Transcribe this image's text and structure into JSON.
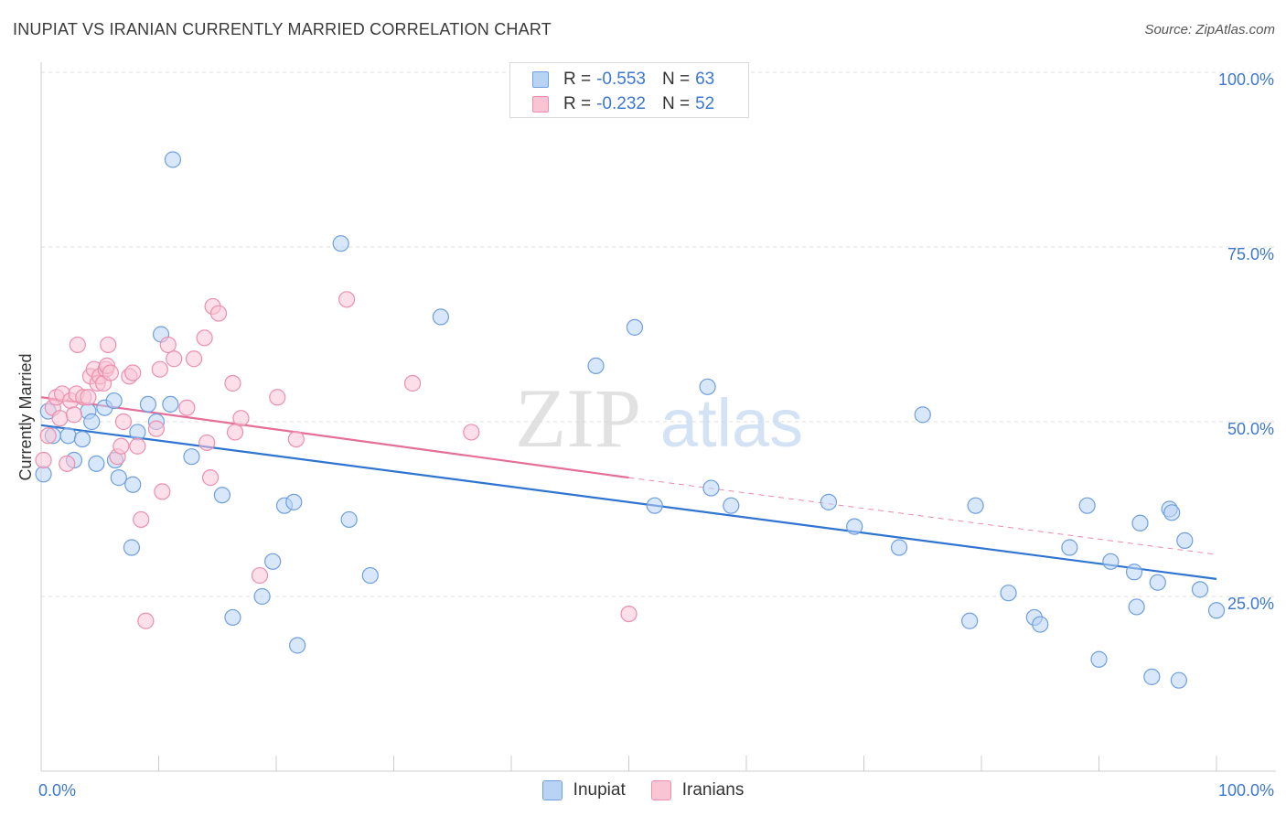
{
  "title": "INUPIAT VS IRANIAN CURRENTLY MARRIED CORRELATION CHART",
  "source": "Source: ZipAtlas.com",
  "watermark": {
    "zip": "ZIP",
    "atlas": "atlas"
  },
  "legend_top": [
    {
      "r_label": "R =",
      "r_value": "-0.553",
      "n_label": "N =",
      "n_value": "63"
    },
    {
      "r_label": "R =",
      "r_value": "-0.232",
      "n_label": "N =",
      "n_value": "52"
    }
  ],
  "legend_bottom": [
    "Inupiat",
    "Iranians"
  ],
  "colors": {
    "blue_fill": "#b9d3f5",
    "blue_stroke": "#6e9fe0",
    "blue_line": "#2f74d0",
    "pink_fill": "#f9c5d5",
    "pink_stroke": "#ec8fae",
    "pink_line": "#e46f98",
    "axis_text": "#3d78d0",
    "grid": "#dddddd"
  },
  "chart_data": {
    "type": "scatter",
    "title": "INUPIAT VS IRANIAN CURRENTLY MARRIED CORRELATION CHART",
    "xlabel": "",
    "ylabel": "Currently Married",
    "xlim": [
      0,
      100
    ],
    "ylim": [
      0,
      100
    ],
    "x_tick_labels": [
      "0.0%",
      "100.0%"
    ],
    "y_tick_labels": [
      "100.0%",
      "75.0%",
      "50.0%",
      "25.0%"
    ],
    "y_ticks": [
      100,
      75,
      50,
      25
    ],
    "series": [
      {
        "name": "Inupiat",
        "color": "#6e9fe0",
        "trend": {
          "x0": 0,
          "y0": 49.5,
          "x1": 100,
          "y1": 27.5
        },
        "points": [
          [
            0.2,
            42.5
          ],
          [
            0.6,
            51.5
          ],
          [
            1.0,
            48.0
          ],
          [
            2.3,
            48.0
          ],
          [
            3.5,
            47.5
          ],
          [
            2.8,
            44.5
          ],
          [
            4.0,
            51.5
          ],
          [
            4.3,
            50.0
          ],
          [
            4.7,
            44.0
          ],
          [
            5.4,
            52.0
          ],
          [
            6.2,
            53.0
          ],
          [
            6.3,
            44.5
          ],
          [
            6.6,
            42.0
          ],
          [
            7.7,
            32.0
          ],
          [
            7.8,
            41.0
          ],
          [
            8.2,
            48.5
          ],
          [
            9.1,
            52.5
          ],
          [
            9.8,
            50.0
          ],
          [
            10.2,
            62.5
          ],
          [
            11.0,
            52.5
          ],
          [
            11.2,
            87.5
          ],
          [
            12.8,
            45.0
          ],
          [
            15.4,
            39.5
          ],
          [
            16.3,
            22.0
          ],
          [
            18.8,
            25.0
          ],
          [
            19.7,
            30.0
          ],
          [
            20.7,
            38.0
          ],
          [
            21.5,
            38.5
          ],
          [
            21.8,
            18.0
          ],
          [
            25.5,
            75.5
          ],
          [
            26.2,
            36.0
          ],
          [
            28.0,
            28.0
          ],
          [
            34.0,
            65.0
          ],
          [
            47.2,
            58.0
          ],
          [
            50.5,
            63.5
          ],
          [
            52.2,
            38.0
          ],
          [
            56.7,
            55.0
          ],
          [
            57.0,
            40.5
          ],
          [
            58.7,
            38.0
          ],
          [
            67.0,
            38.5
          ],
          [
            69.2,
            35.0
          ],
          [
            73.0,
            32.0
          ],
          [
            75.0,
            51.0
          ],
          [
            79.0,
            21.5
          ],
          [
            79.5,
            38.0
          ],
          [
            82.3,
            25.5
          ],
          [
            84.5,
            22.0
          ],
          [
            85.0,
            21.0
          ],
          [
            87.5,
            32.0
          ],
          [
            89.0,
            38.0
          ],
          [
            90.0,
            16.0
          ],
          [
            91.0,
            30.0
          ],
          [
            93.0,
            28.5
          ],
          [
            93.2,
            23.5
          ],
          [
            93.5,
            35.5
          ],
          [
            94.5,
            13.5
          ],
          [
            95.0,
            27.0
          ],
          [
            96.0,
            37.5
          ],
          [
            96.2,
            37.0
          ],
          [
            96.8,
            13.0
          ],
          [
            97.3,
            33.0
          ],
          [
            98.6,
            26.0
          ],
          [
            100.0,
            23.0
          ]
        ]
      },
      {
        "name": "Iranians",
        "color": "#ec8fae",
        "trend": {
          "x0": 0,
          "y0": 53.5,
          "x1": 50,
          "y1": 42.0
        },
        "trend_dashed": {
          "x0": 50,
          "y0": 42.0,
          "x1": 100,
          "y1": 31.0
        },
        "points": [
          [
            0.2,
            44.5
          ],
          [
            0.6,
            48.0
          ],
          [
            1.0,
            52.0
          ],
          [
            1.3,
            53.5
          ],
          [
            1.6,
            50.5
          ],
          [
            1.8,
            54.0
          ],
          [
            2.2,
            44.0
          ],
          [
            2.5,
            53.0
          ],
          [
            2.8,
            51.0
          ],
          [
            3.0,
            54.0
          ],
          [
            3.1,
            61.0
          ],
          [
            3.6,
            53.5
          ],
          [
            4.0,
            53.5
          ],
          [
            4.2,
            56.5
          ],
          [
            4.5,
            57.5
          ],
          [
            4.8,
            55.5
          ],
          [
            5.0,
            56.5
          ],
          [
            5.3,
            55.5
          ],
          [
            5.5,
            57.5
          ],
          [
            5.6,
            58.0
          ],
          [
            5.7,
            61.0
          ],
          [
            5.9,
            57.0
          ],
          [
            6.5,
            45.0
          ],
          [
            6.8,
            46.5
          ],
          [
            7.0,
            50.0
          ],
          [
            7.5,
            56.5
          ],
          [
            7.8,
            57.0
          ],
          [
            8.2,
            46.5
          ],
          [
            8.5,
            36.0
          ],
          [
            8.9,
            21.5
          ],
          [
            9.8,
            49.0
          ],
          [
            10.1,
            57.5
          ],
          [
            10.3,
            40.0
          ],
          [
            10.8,
            61.0
          ],
          [
            11.3,
            59.0
          ],
          [
            12.4,
            52.0
          ],
          [
            13.0,
            59.0
          ],
          [
            13.9,
            62.0
          ],
          [
            14.1,
            47.0
          ],
          [
            14.4,
            42.0
          ],
          [
            14.6,
            66.5
          ],
          [
            15.1,
            65.5
          ],
          [
            16.3,
            55.5
          ],
          [
            16.5,
            48.5
          ],
          [
            17.0,
            50.5
          ],
          [
            18.6,
            28.0
          ],
          [
            20.1,
            53.5
          ],
          [
            21.7,
            47.5
          ],
          [
            26.0,
            67.5
          ],
          [
            31.6,
            55.5
          ],
          [
            36.6,
            48.5
          ],
          [
            50.0,
            22.5
          ]
        ]
      }
    ]
  }
}
